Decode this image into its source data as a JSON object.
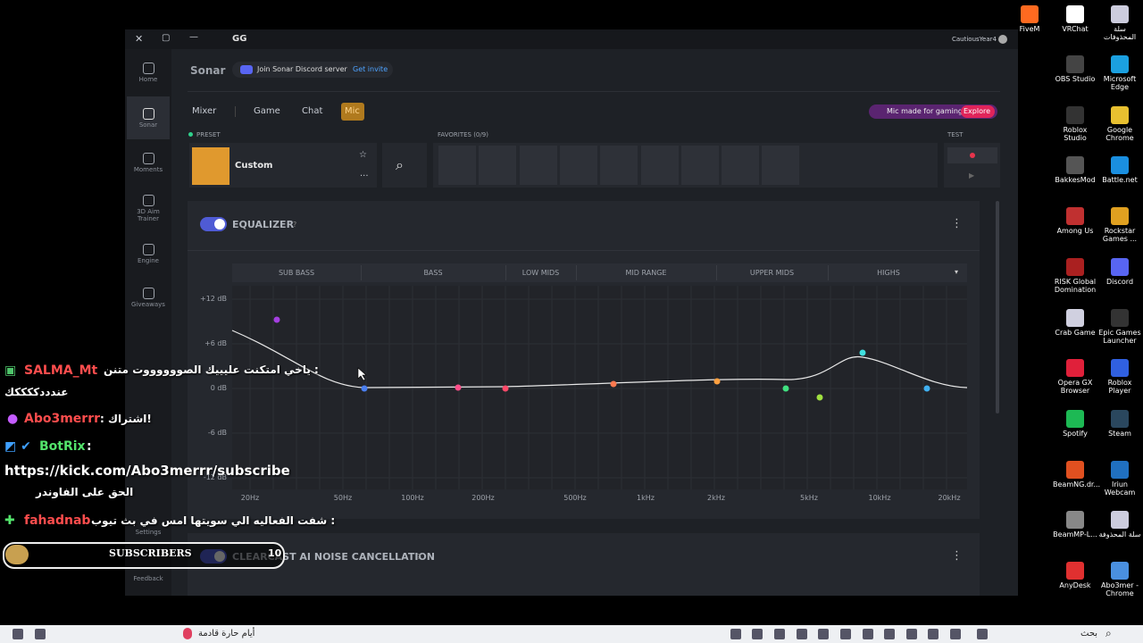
{
  "window": {
    "app": "GG",
    "user": "CautiousYear4"
  },
  "sidebar": [
    "Home",
    "Sonar",
    "Moments",
    "3D Aim Trainer",
    "Engine",
    "Giveaways",
    "Settings",
    "Feedback"
  ],
  "header": {
    "title": "Sonar",
    "discord": "Join Sonar Discord server",
    "invite": "Get invite"
  },
  "tabs": [
    "Mixer",
    "Game",
    "Chat",
    "Mic"
  ],
  "promo": {
    "text": "Mic made for gaming",
    "action": "Explore"
  },
  "preset": {
    "label": "PRESET",
    "name": "Custom"
  },
  "favorites": "FAVORITES (0/9)",
  "test": "TEST",
  "equalizer": {
    "title": "EQUALIZER",
    "help": "?",
    "bands": [
      "SUB BASS",
      "BASS",
      "LOW MIDS",
      "MID RANGE",
      "UPPER MIDS",
      "HIGHS"
    ],
    "gains": [
      "+12 dB",
      "+6 dB",
      "0 dB",
      "-6 dB",
      "-12 dB"
    ],
    "frequencies": [
      "20Hz",
      "50Hz",
      "100Hz",
      "200Hz",
      "500Hz",
      "1kHz",
      "2kHz",
      "5kHz",
      "10kHz",
      "20kHz"
    ]
  },
  "noise": {
    "title": "CLEARCAST AI NOISE CANCELLATION",
    "help": "?"
  },
  "chat": [
    {
      "user": "SALMA_Mt",
      "message": "ياخي امتكنت عليييك الصووووووت متنن :"
    },
    {
      "text": "عندددككككك"
    },
    {
      "user": "Abo3merrr",
      "message": ": اشتراك!"
    },
    {
      "user": "BotRix",
      "message": ":"
    },
    {
      "text": "https://kick.com/Abo3merrr/subscribe"
    },
    {
      "text": "الحق على الفاوندر"
    },
    {
      "user": "fahadnab",
      "message": "شفت الفعاليه الي سويتها امس في بث تيوب :"
    }
  ],
  "subscribers": {
    "label": "SUBSCRIBERS",
    "count": "10"
  },
  "desktop": [
    "FiveM",
    "VRChat",
    "سلة المحذوفات",
    "OBS Studio",
    "Microsoft Edge",
    "Roblox Studio",
    "Google Chrome",
    "BakkesMod",
    "Battle.net",
    "Among Us",
    "Rockstar Games ...",
    "RISK Global Domination",
    "Discord",
    "Crab Game",
    "Epic Games Launcher",
    "Opera GX Browser",
    "Roblox Player",
    "Spotify",
    "Steam",
    "BeamNG.dr...",
    "Iriun Webcam",
    "BeamMP-L...",
    "سلة المحذوفة",
    "AnyDesk",
    "Abo3mer - Chrome"
  ],
  "taskbar": {
    "weather": "أيام حارة قادمة",
    "search": "بحث"
  }
}
